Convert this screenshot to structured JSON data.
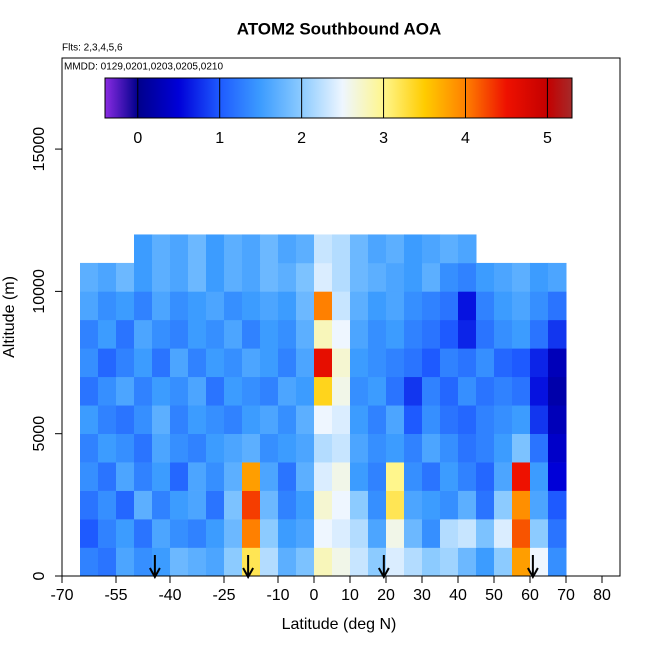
{
  "chart_data": {
    "type": "heatmap",
    "title": "ATOM2 Southbound AOA",
    "subtitle": "Flts: 2,3,4,5,6",
    "annotation": "MMDD: 0129,0201,0203,0205,0210",
    "x_label": "Latitude (deg N)",
    "y_label": "Altitude (m)",
    "xlim": [
      -70,
      85
    ],
    "ylim": [
      0,
      18200
    ],
    "xticks": [
      -70,
      -55,
      -40,
      -25,
      -10,
      0,
      10,
      20,
      30,
      40,
      50,
      60,
      70,
      80
    ],
    "yticks": [
      0,
      5000,
      10000,
      15000
    ],
    "x_bins": [
      -65,
      -60,
      -55,
      -50,
      -45,
      -40,
      -35,
      -30,
      -25,
      -20,
      -15,
      -10,
      -5,
      0,
      5,
      10,
      15,
      20,
      25,
      30,
      35,
      40,
      45,
      50,
      55,
      60,
      65,
      70
    ],
    "y_bins": [
      0,
      1000,
      2000,
      3000,
      4000,
      5000,
      6000,
      7000,
      8000,
      9000,
      10000,
      11000,
      12000
    ],
    "z": [
      [
        1.3,
        1.2,
        1.6,
        1.4,
        1.5,
        1.8,
        1.7,
        1.6,
        2.0,
        3.2,
        2.2,
        1.7,
        1.9,
        2.8,
        2.6,
        2.3,
        2.0,
        2.4,
        2.2,
        2.0,
        2.1,
        1.8,
        1.5,
        2.0,
        3.8,
        2.5,
        1.4
      ],
      [
        1.0,
        1.3,
        1.5,
        1.2,
        1.6,
        1.4,
        1.3,
        1.5,
        1.8,
        4.0,
        2.0,
        1.5,
        1.6,
        2.5,
        2.4,
        2.2,
        1.6,
        2.6,
        1.8,
        1.4,
        2.2,
        2.3,
        1.9,
        2.4,
        4.2,
        2.0,
        1.2
      ],
      [
        1.2,
        1.4,
        1.1,
        1.7,
        1.3,
        1.5,
        1.6,
        1.2,
        1.9,
        4.3,
        1.8,
        1.3,
        1.5,
        2.7,
        2.5,
        2.0,
        1.4,
        3.2,
        1.6,
        1.5,
        1.4,
        1.7,
        1.2,
        2.0,
        3.9,
        1.6,
        1.0
      ],
      [
        1.4,
        1.2,
        1.6,
        1.3,
        1.5,
        1.1,
        1.6,
        1.4,
        1.7,
        3.8,
        1.6,
        1.2,
        1.7,
        2.4,
        2.6,
        1.5,
        1.3,
        3.0,
        1.4,
        1.2,
        1.5,
        1.3,
        1.1,
        1.6,
        4.5,
        1.5,
        0.5
      ],
      [
        1.3,
        1.5,
        1.4,
        1.2,
        1.6,
        1.4,
        1.3,
        1.5,
        1.6,
        1.7,
        1.4,
        1.5,
        1.6,
        2.2,
        2.3,
        1.6,
        1.4,
        1.5,
        1.3,
        1.6,
        1.4,
        1.2,
        1.3,
        1.5,
        1.9,
        1.2,
        0.4
      ],
      [
        1.5,
        1.3,
        1.2,
        1.4,
        1.7,
        1.3,
        1.5,
        1.4,
        1.3,
        1.5,
        1.6,
        1.4,
        1.7,
        2.5,
        2.4,
        1.5,
        1.3,
        1.6,
        1.0,
        1.4,
        1.2,
        1.1,
        1.3,
        1.4,
        1.5,
        0.8,
        0.3
      ],
      [
        1.2,
        1.4,
        1.6,
        1.3,
        1.5,
        1.4,
        1.6,
        1.2,
        1.5,
        1.4,
        1.3,
        1.6,
        1.5,
        3.4,
        2.6,
        1.4,
        1.5,
        1.2,
        0.8,
        1.3,
        1.1,
        1.4,
        1.2,
        1.3,
        1.2,
        0.6,
        0.2
      ],
      [
        1.4,
        1.1,
        1.3,
        1.5,
        1.2,
        1.6,
        1.3,
        1.5,
        1.4,
        1.6,
        1.5,
        1.3,
        1.6,
        4.6,
        2.7,
        1.5,
        1.4,
        1.3,
        1.2,
        1.0,
        1.3,
        1.2,
        1.4,
        1.1,
        1.0,
        0.7,
        0.3
      ],
      [
        1.3,
        1.5,
        1.2,
        1.6,
        1.4,
        1.3,
        1.5,
        1.4,
        1.6,
        1.3,
        1.5,
        1.4,
        1.7,
        2.8,
        2.5,
        1.6,
        1.4,
        1.5,
        1.3,
        1.2,
        1.0,
        0.7,
        1.2,
        1.4,
        1.5,
        1.2,
        0.8
      ],
      [
        1.6,
        1.4,
        1.5,
        1.3,
        1.6,
        1.4,
        1.5,
        1.6,
        1.4,
        1.5,
        1.6,
        1.5,
        1.8,
        4.0,
        2.3,
        1.7,
        1.5,
        1.6,
        1.4,
        1.3,
        1.2,
        0.6,
        1.3,
        1.5,
        1.6,
        1.4,
        1.2
      ],
      [
        1.7,
        1.6,
        1.8,
        1.5,
        1.7,
        1.6,
        1.8,
        1.5,
        1.7,
        1.6,
        1.8,
        1.7,
        1.9,
        2.4,
        2.2,
        1.8,
        1.7,
        1.6,
        1.5,
        1.7,
        1.4,
        1.3,
        1.5,
        1.6,
        1.7,
        1.5,
        1.6
      ],
      [
        null,
        null,
        null,
        1.5,
        1.7,
        1.6,
        1.8,
        1.5,
        1.7,
        1.6,
        1.8,
        1.6,
        1.7,
        2.3,
        2.2,
        1.8,
        1.6,
        1.7,
        1.5,
        1.6,
        1.7,
        1.6,
        null,
        null,
        null,
        null,
        null
      ]
    ],
    "colorbar_lim": [
      -0.4,
      5.3
    ],
    "colorbar_ticks": [
      0,
      1,
      2,
      3,
      4,
      5
    ],
    "colorscale": [
      [
        -0.4,
        "#8a2be2"
      ],
      [
        0,
        "#00008b"
      ],
      [
        0.5,
        "#0000d8"
      ],
      [
        1,
        "#1e5aff"
      ],
      [
        1.5,
        "#3c9cff"
      ],
      [
        2,
        "#8ccbff"
      ],
      [
        2.5,
        "#eef6ff"
      ],
      [
        3,
        "#fff68c"
      ],
      [
        3.5,
        "#ffcc00"
      ],
      [
        4,
        "#ff8000"
      ],
      [
        4.5,
        "#ee1100"
      ],
      [
        5,
        "#c40000"
      ],
      [
        5.3,
        "#a52a2a"
      ]
    ],
    "arrows_x": [
      -44.2,
      -18.3,
      19.4,
      60.8
    ]
  }
}
